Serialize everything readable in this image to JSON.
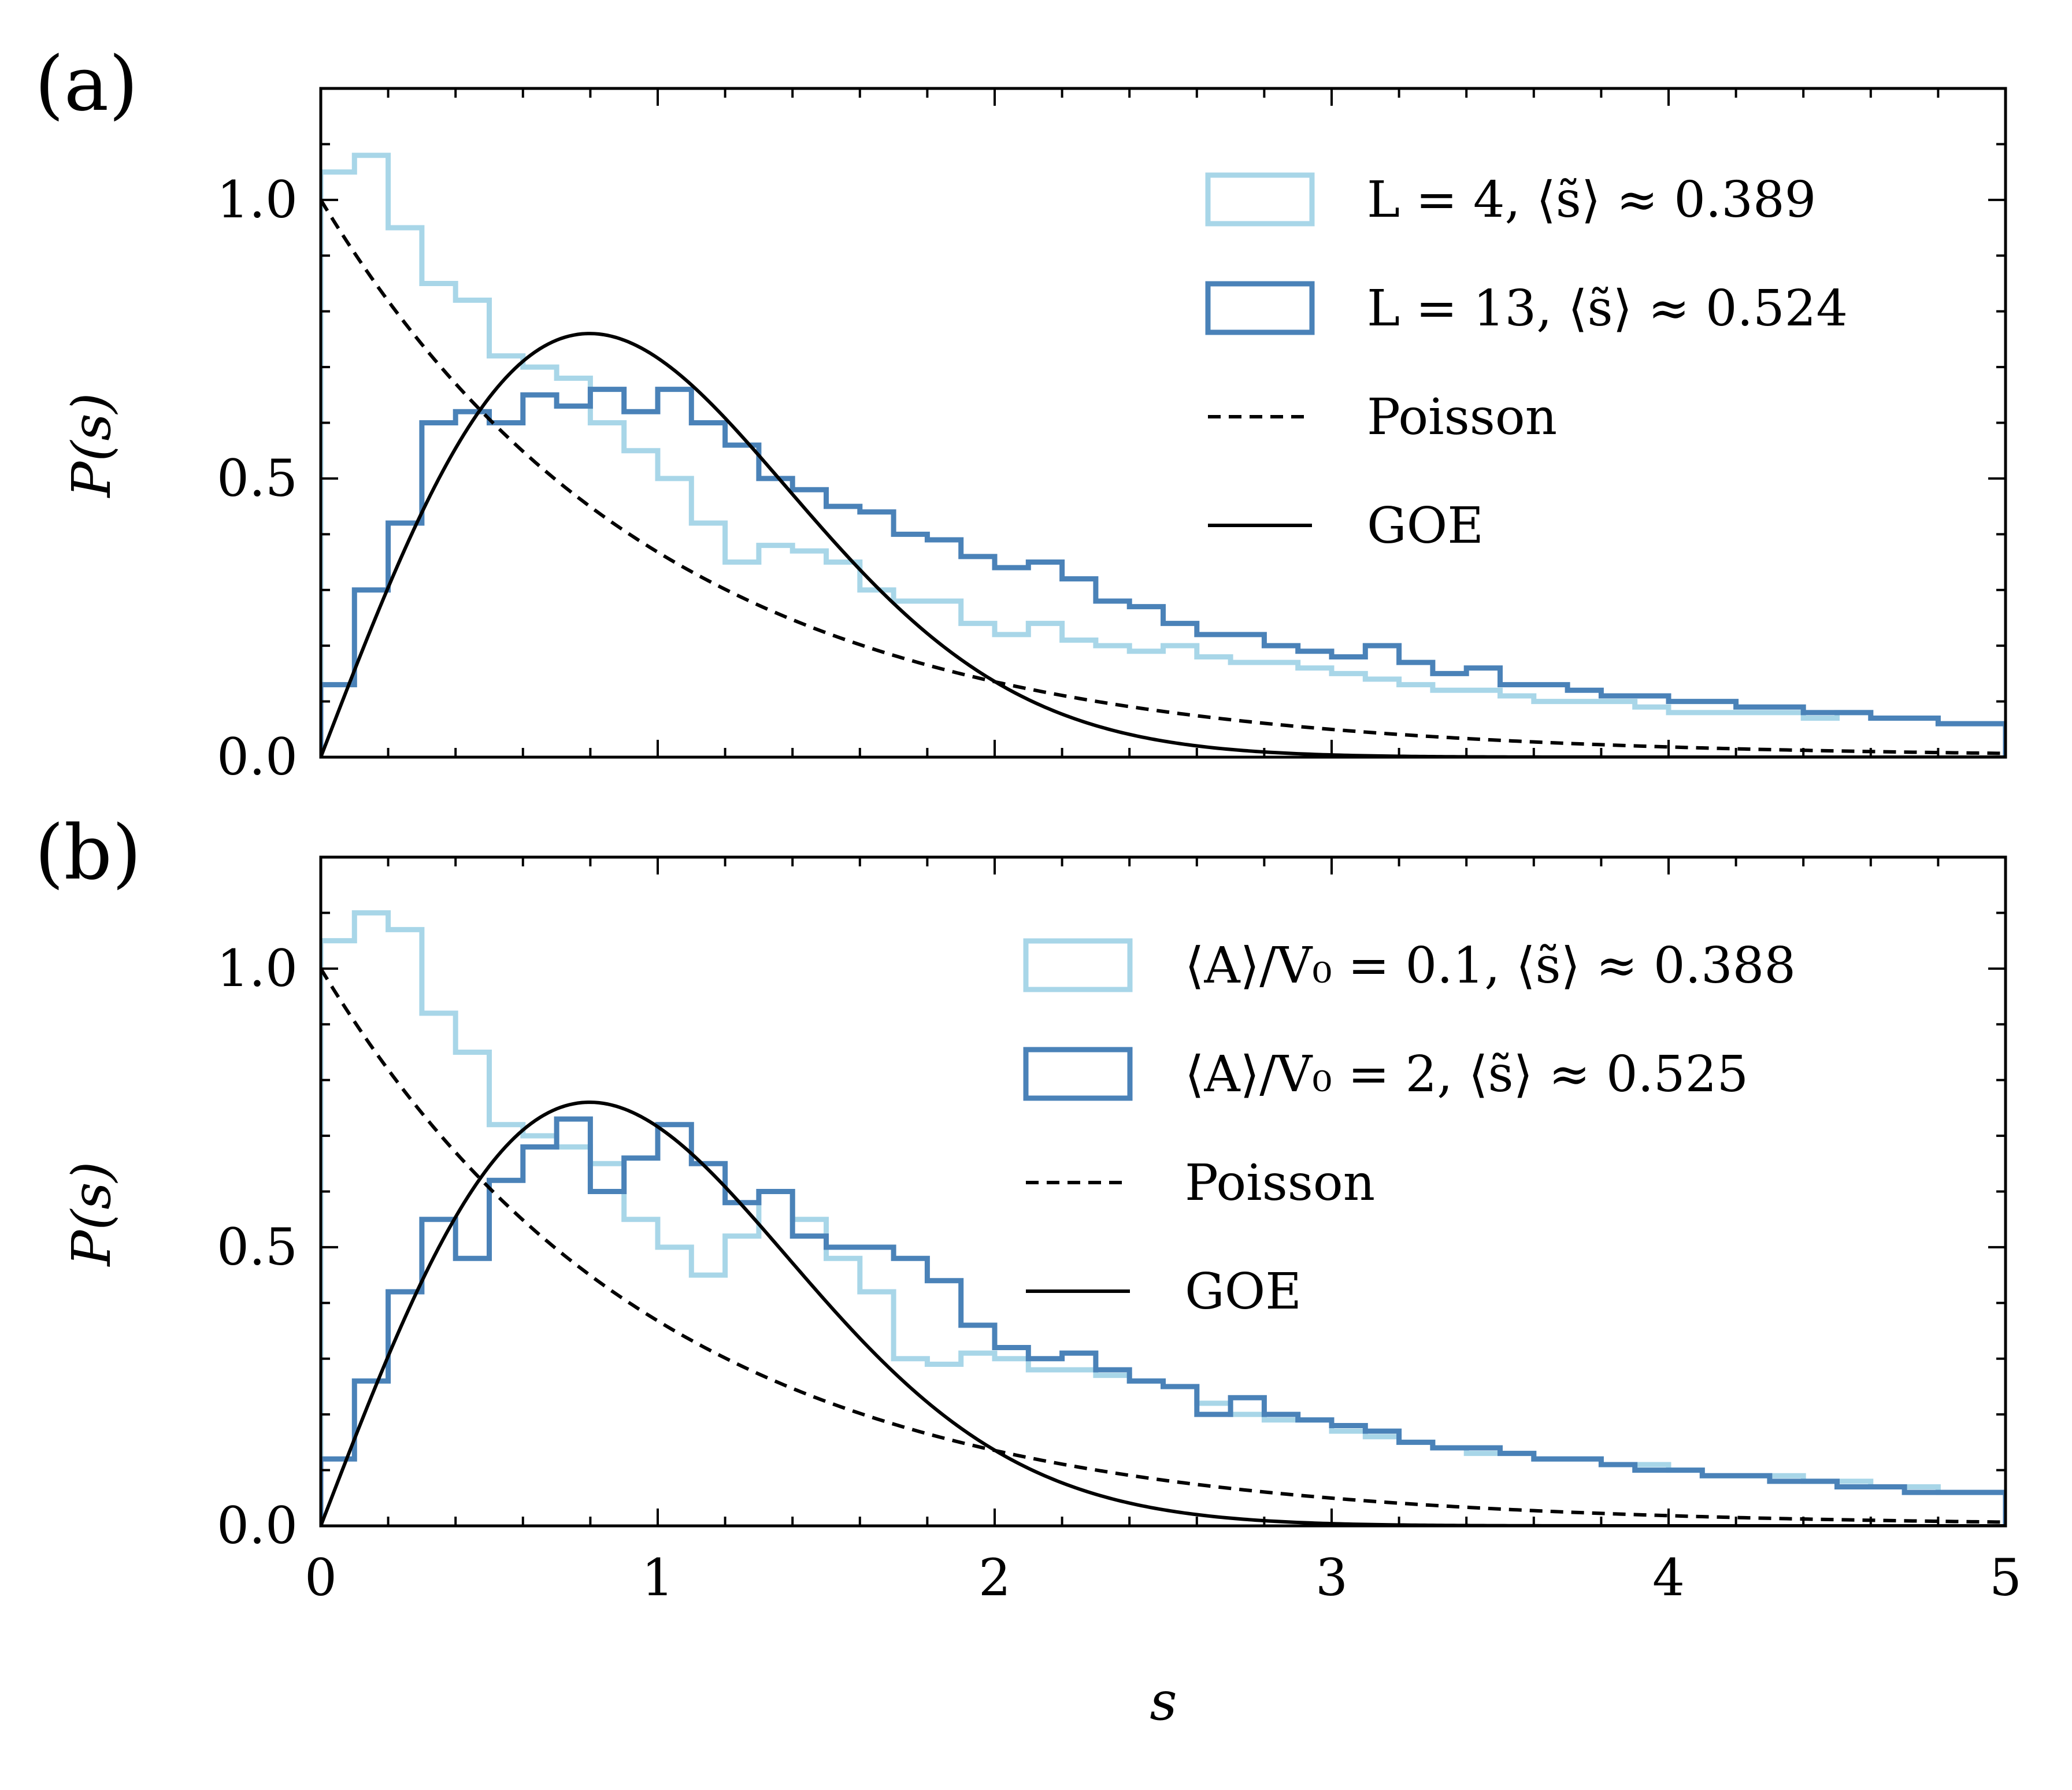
{
  "figure": {
    "xlabel": "s",
    "ylabel": "P(s)"
  },
  "colors": {
    "light": "#a8d6e8",
    "dark": "#4a82b8",
    "curve": "#000000"
  },
  "chart_data": [
    {
      "type": "line",
      "panel_label": "(a)",
      "xlim": [
        0,
        5
      ],
      "ylim": [
        0,
        1.2
      ],
      "xticks": [
        "0",
        "1",
        "2",
        "3",
        "4",
        "5"
      ],
      "yticks": [
        "0.0",
        "0.5",
        "1.0"
      ],
      "ytick_values": [
        0,
        0.5,
        1.0
      ],
      "bin_width": 0.1,
      "legend": [
        {
          "label": "L = 4,   ⟨s̃⟩ ≈ 0.389",
          "kind": "hist-light"
        },
        {
          "label": "L = 13, ⟨s̃⟩ ≈ 0.524",
          "kind": "hist-dark"
        },
        {
          "label": "Poisson",
          "kind": "dashed"
        },
        {
          "label": "GOE",
          "kind": "solid"
        }
      ],
      "series": [
        {
          "name": "L = 4",
          "color": "light",
          "values": [
            1.05,
            1.08,
            0.95,
            0.85,
            0.82,
            0.72,
            0.7,
            0.68,
            0.6,
            0.55,
            0.5,
            0.42,
            0.35,
            0.38,
            0.37,
            0.35,
            0.3,
            0.28,
            0.28,
            0.24,
            0.22,
            0.24,
            0.21,
            0.2,
            0.19,
            0.2,
            0.18,
            0.17,
            0.17,
            0.16,
            0.15,
            0.14,
            0.13,
            0.12,
            0.12,
            0.11,
            0.1,
            0.1,
            0.1,
            0.09,
            0.08,
            0.08,
            0.08,
            0.08,
            0.07,
            0.08,
            0.07,
            0.07,
            0.06,
            0.06
          ]
        },
        {
          "name": "L = 13",
          "color": "dark",
          "values": [
            0.13,
            0.3,
            0.42,
            0.6,
            0.62,
            0.6,
            0.65,
            0.63,
            0.66,
            0.62,
            0.66,
            0.6,
            0.56,
            0.5,
            0.48,
            0.45,
            0.44,
            0.4,
            0.39,
            0.36,
            0.34,
            0.35,
            0.32,
            0.28,
            0.27,
            0.24,
            0.22,
            0.22,
            0.2,
            0.19,
            0.18,
            0.2,
            0.17,
            0.15,
            0.16,
            0.13,
            0.13,
            0.12,
            0.11,
            0.11,
            0.1,
            0.1,
            0.09,
            0.09,
            0.08,
            0.08,
            0.07,
            0.07,
            0.06,
            0.06
          ]
        }
      ]
    },
    {
      "type": "line",
      "panel_label": "(b)",
      "xlim": [
        0,
        5
      ],
      "ylim": [
        0,
        1.2
      ],
      "xticks": [
        "0",
        "1",
        "2",
        "3",
        "4",
        "5"
      ],
      "yticks": [
        "0.0",
        "0.5",
        "1.0"
      ],
      "ytick_values": [
        0,
        0.5,
        1.0
      ],
      "bin_width": 0.1,
      "legend": [
        {
          "label": "⟨A⟩/V₀ = 0.1, ⟨s̃⟩ ≈ 0.388",
          "kind": "hist-light"
        },
        {
          "label": "⟨A⟩/V₀ = 2,   ⟨s̃⟩ ≈ 0.525",
          "kind": "hist-dark"
        },
        {
          "label": "Poisson",
          "kind": "dashed"
        },
        {
          "label": "GOE",
          "kind": "solid"
        }
      ],
      "series": [
        {
          "name": "⟨A⟩/V₀ = 0.1",
          "color": "light",
          "values": [
            1.05,
            1.1,
            1.07,
            0.92,
            0.85,
            0.72,
            0.7,
            0.68,
            0.65,
            0.55,
            0.5,
            0.45,
            0.52,
            0.6,
            0.55,
            0.48,
            0.42,
            0.3,
            0.29,
            0.31,
            0.3,
            0.28,
            0.28,
            0.27,
            0.26,
            0.25,
            0.22,
            0.2,
            0.19,
            0.19,
            0.17,
            0.16,
            0.15,
            0.14,
            0.13,
            0.13,
            0.12,
            0.12,
            0.11,
            0.11,
            0.1,
            0.09,
            0.09,
            0.09,
            0.08,
            0.08,
            0.07,
            0.07,
            0.06,
            0.06
          ]
        },
        {
          "name": "⟨A⟩/V₀ = 2",
          "color": "dark",
          "values": [
            0.12,
            0.26,
            0.42,
            0.55,
            0.48,
            0.62,
            0.68,
            0.73,
            0.6,
            0.66,
            0.72,
            0.65,
            0.58,
            0.6,
            0.52,
            0.5,
            0.5,
            0.48,
            0.44,
            0.36,
            0.32,
            0.3,
            0.31,
            0.28,
            0.26,
            0.25,
            0.2,
            0.23,
            0.2,
            0.19,
            0.18,
            0.17,
            0.15,
            0.14,
            0.14,
            0.13,
            0.12,
            0.12,
            0.11,
            0.1,
            0.1,
            0.09,
            0.09,
            0.08,
            0.08,
            0.07,
            0.07,
            0.06,
            0.06,
            0.06
          ]
        }
      ]
    }
  ]
}
